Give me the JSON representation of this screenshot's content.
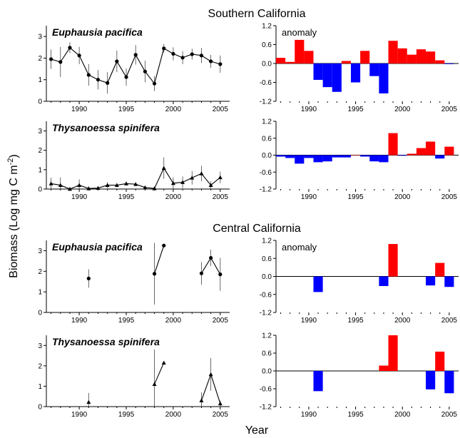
{
  "figure": {
    "ylabel": "Biomass (Log mg C m",
    "ylabel_sup": "-2",
    "ylabel_close": ")",
    "xlabel": "Year",
    "region_titles": [
      "Southern California",
      "Central California"
    ]
  },
  "chart_data": [
    {
      "type": "line",
      "region": "Southern California",
      "species": "Euphausia pacifica",
      "xlim": [
        1986.5,
        2006
      ],
      "ylim": [
        0,
        3.5
      ],
      "x_ticks": [
        1990,
        1995,
        2000,
        2005
      ],
      "y_ticks": [
        0,
        1,
        2,
        3
      ],
      "marker": "circle",
      "x": [
        1987,
        1988,
        1989,
        1990,
        1991,
        1992,
        1993,
        1994,
        1995,
        1996,
        1997,
        1998,
        1999,
        2000,
        2001,
        2002,
        2003,
        2004,
        2005
      ],
      "y": [
        1.95,
        1.82,
        2.48,
        2.12,
        1.22,
        1.0,
        0.85,
        1.85,
        1.12,
        2.15,
        1.38,
        0.82,
        2.45,
        2.2,
        2.02,
        2.18,
        2.12,
        1.85,
        1.72
      ],
      "err": [
        0.45,
        0.7,
        0.25,
        0.4,
        0.5,
        0.45,
        0.5,
        0.5,
        0.4,
        0.45,
        0.5,
        0.35,
        0.2,
        0.3,
        0.3,
        0.25,
        0.35,
        0.3,
        0.4
      ]
    },
    {
      "type": "bar",
      "region": "Southern California",
      "species": "Euphausia pacifica",
      "label": "anomaly",
      "xlim": [
        1986.5,
        2006
      ],
      "ylim": [
        -1.2,
        1.2
      ],
      "x_ticks": [
        1990,
        1995,
        2000,
        2005
      ],
      "y_ticks": [
        -1.2,
        -0.6,
        0.0,
        0.6,
        1.2
      ],
      "y_tick_labels": [
        "-1.2",
        "-0.6",
        "0.0",
        "0.6",
        "1.2"
      ],
      "x": [
        1987,
        1988,
        1989,
        1990,
        1991,
        1992,
        1993,
        1994,
        1995,
        1996,
        1997,
        1998,
        1999,
        2000,
        2001,
        2002,
        2003,
        2004,
        2005
      ],
      "values": [
        0.18,
        0.05,
        0.75,
        0.4,
        -0.52,
        -0.75,
        -0.9,
        0.08,
        -0.6,
        0.4,
        -0.4,
        -0.95,
        0.72,
        0.48,
        0.28,
        0.45,
        0.38,
        0.1,
        -0.02
      ]
    },
    {
      "type": "line",
      "region": "Southern California",
      "species": "Thysanoessa spinifera",
      "xlim": [
        1986.5,
        2006
      ],
      "ylim": [
        0,
        3.5
      ],
      "x_ticks": [
        1990,
        1995,
        2000,
        2005
      ],
      "y_ticks": [
        0,
        1,
        2,
        3
      ],
      "marker": "triangle",
      "x": [
        1987,
        1988,
        1989,
        1990,
        1991,
        1992,
        1993,
        1994,
        1995,
        1996,
        1997,
        1998,
        1999,
        2000,
        2001,
        2002,
        2003,
        2004,
        2005
      ],
      "y": [
        0.28,
        0.2,
        0.0,
        0.2,
        0.03,
        0.05,
        0.2,
        0.2,
        0.28,
        0.25,
        0.08,
        0.03,
        1.08,
        0.3,
        0.35,
        0.58,
        0.8,
        0.2,
        0.6
      ],
      "err": [
        0.3,
        0.4,
        0.1,
        0.3,
        0.1,
        0.1,
        0.15,
        0.1,
        0.1,
        0.1,
        0.1,
        0.1,
        0.55,
        0.3,
        0.3,
        0.35,
        0.4,
        0.2,
        0.3
      ]
    },
    {
      "type": "bar",
      "region": "Southern California",
      "species": "Thysanoessa spinifera",
      "xlim": [
        1986.5,
        2006
      ],
      "ylim": [
        -1.2,
        1.2
      ],
      "x_ticks": [
        1990,
        1995,
        2000,
        2005
      ],
      "y_ticks": [
        -1.2,
        -0.6,
        0.0,
        0.6,
        1.2
      ],
      "y_tick_labels": [
        "-1.2",
        "-0.6",
        "0.0",
        "0.6",
        "1.2"
      ],
      "x": [
        1987,
        1988,
        1989,
        1990,
        1991,
        1992,
        1993,
        1994,
        1995,
        1996,
        1997,
        1998,
        1999,
        2000,
        2001,
        2002,
        2003,
        2004,
        2005
      ],
      "values": [
        -0.05,
        -0.1,
        -0.3,
        -0.1,
        -0.25,
        -0.22,
        -0.08,
        -0.08,
        0.0,
        -0.05,
        -0.22,
        -0.25,
        0.78,
        -0.02,
        0.05,
        0.25,
        0.48,
        -0.12,
        0.3
      ]
    },
    {
      "type": "line",
      "region": "Central California",
      "species": "Euphausia pacifica",
      "xlim": [
        1986.5,
        2006
      ],
      "ylim": [
        0,
        3.5
      ],
      "x_ticks": [
        1990,
        1995,
        2000,
        2005
      ],
      "y_ticks": [
        0,
        1,
        2,
        3
      ],
      "marker": "circle",
      "x": [
        1991,
        1998,
        1999,
        2003,
        2004,
        2005
      ],
      "y": [
        1.65,
        1.88,
        3.25,
        1.9,
        2.65,
        1.85
      ],
      "err": [
        0.45,
        1.5,
        0,
        0.55,
        0.4,
        0.8
      ],
      "segments": [
        [
          1991
        ],
        [
          1998,
          1999
        ],
        [
          2003,
          2004,
          2005
        ]
      ]
    },
    {
      "type": "bar",
      "region": "Central California",
      "species": "Euphausia pacifica",
      "label": "anomaly",
      "xlim": [
        1986.5,
        2006
      ],
      "ylim": [
        -1.2,
        1.2
      ],
      "x_ticks": [
        1990,
        1995,
        2000,
        2005
      ],
      "y_ticks": [
        -1.2,
        -0.6,
        0.0,
        0.6,
        1.2
      ],
      "y_tick_labels": [
        "-1.2",
        "-0.6",
        "0.0",
        "0.6",
        "1.2"
      ],
      "x": [
        1991,
        1998,
        1999,
        2003,
        2004,
        2005
      ],
      "values": [
        -0.52,
        -0.32,
        1.08,
        -0.3,
        0.45,
        -0.35
      ]
    },
    {
      "type": "line",
      "region": "Central California",
      "species": "Thysanoessa spinifera",
      "xlim": [
        1986.5,
        2006
      ],
      "ylim": [
        0,
        3.5
      ],
      "x_ticks": [
        1990,
        1995,
        2000,
        2005
      ],
      "y_ticks": [
        0,
        1,
        2,
        3
      ],
      "marker": "triangle",
      "x": [
        1991,
        1998,
        1999,
        2003,
        2004,
        2005
      ],
      "y": [
        0.22,
        1.1,
        2.15,
        0.3,
        1.58,
        0.15
      ],
      "err": [
        0.45,
        1.7,
        0,
        0.4,
        0.8,
        0.15
      ],
      "segments": [
        [
          1991
        ],
        [
          1998,
          1999
        ],
        [
          2003,
          2004,
          2005
        ]
      ]
    },
    {
      "type": "bar",
      "region": "Central California",
      "species": "Thysanoessa spinifera",
      "xlim": [
        1986.5,
        2006
      ],
      "ylim": [
        -1.2,
        1.2
      ],
      "x_ticks": [
        1990,
        1995,
        2000,
        2005
      ],
      "y_ticks": [
        -1.2,
        -0.6,
        0.0,
        0.6,
        1.2
      ],
      "y_tick_labels": [
        "-1.2",
        "-0.6",
        "0.0",
        "0.6",
        "1.2"
      ],
      "x": [
        1991,
        1998,
        1999,
        2003,
        2004,
        2005
      ],
      "values": [
        -0.68,
        0.18,
        1.2,
        -0.62,
        0.65,
        -0.75
      ]
    }
  ],
  "colors": {
    "positive": "#ff0000",
    "negative": "#0000ff",
    "line": "#000000"
  }
}
